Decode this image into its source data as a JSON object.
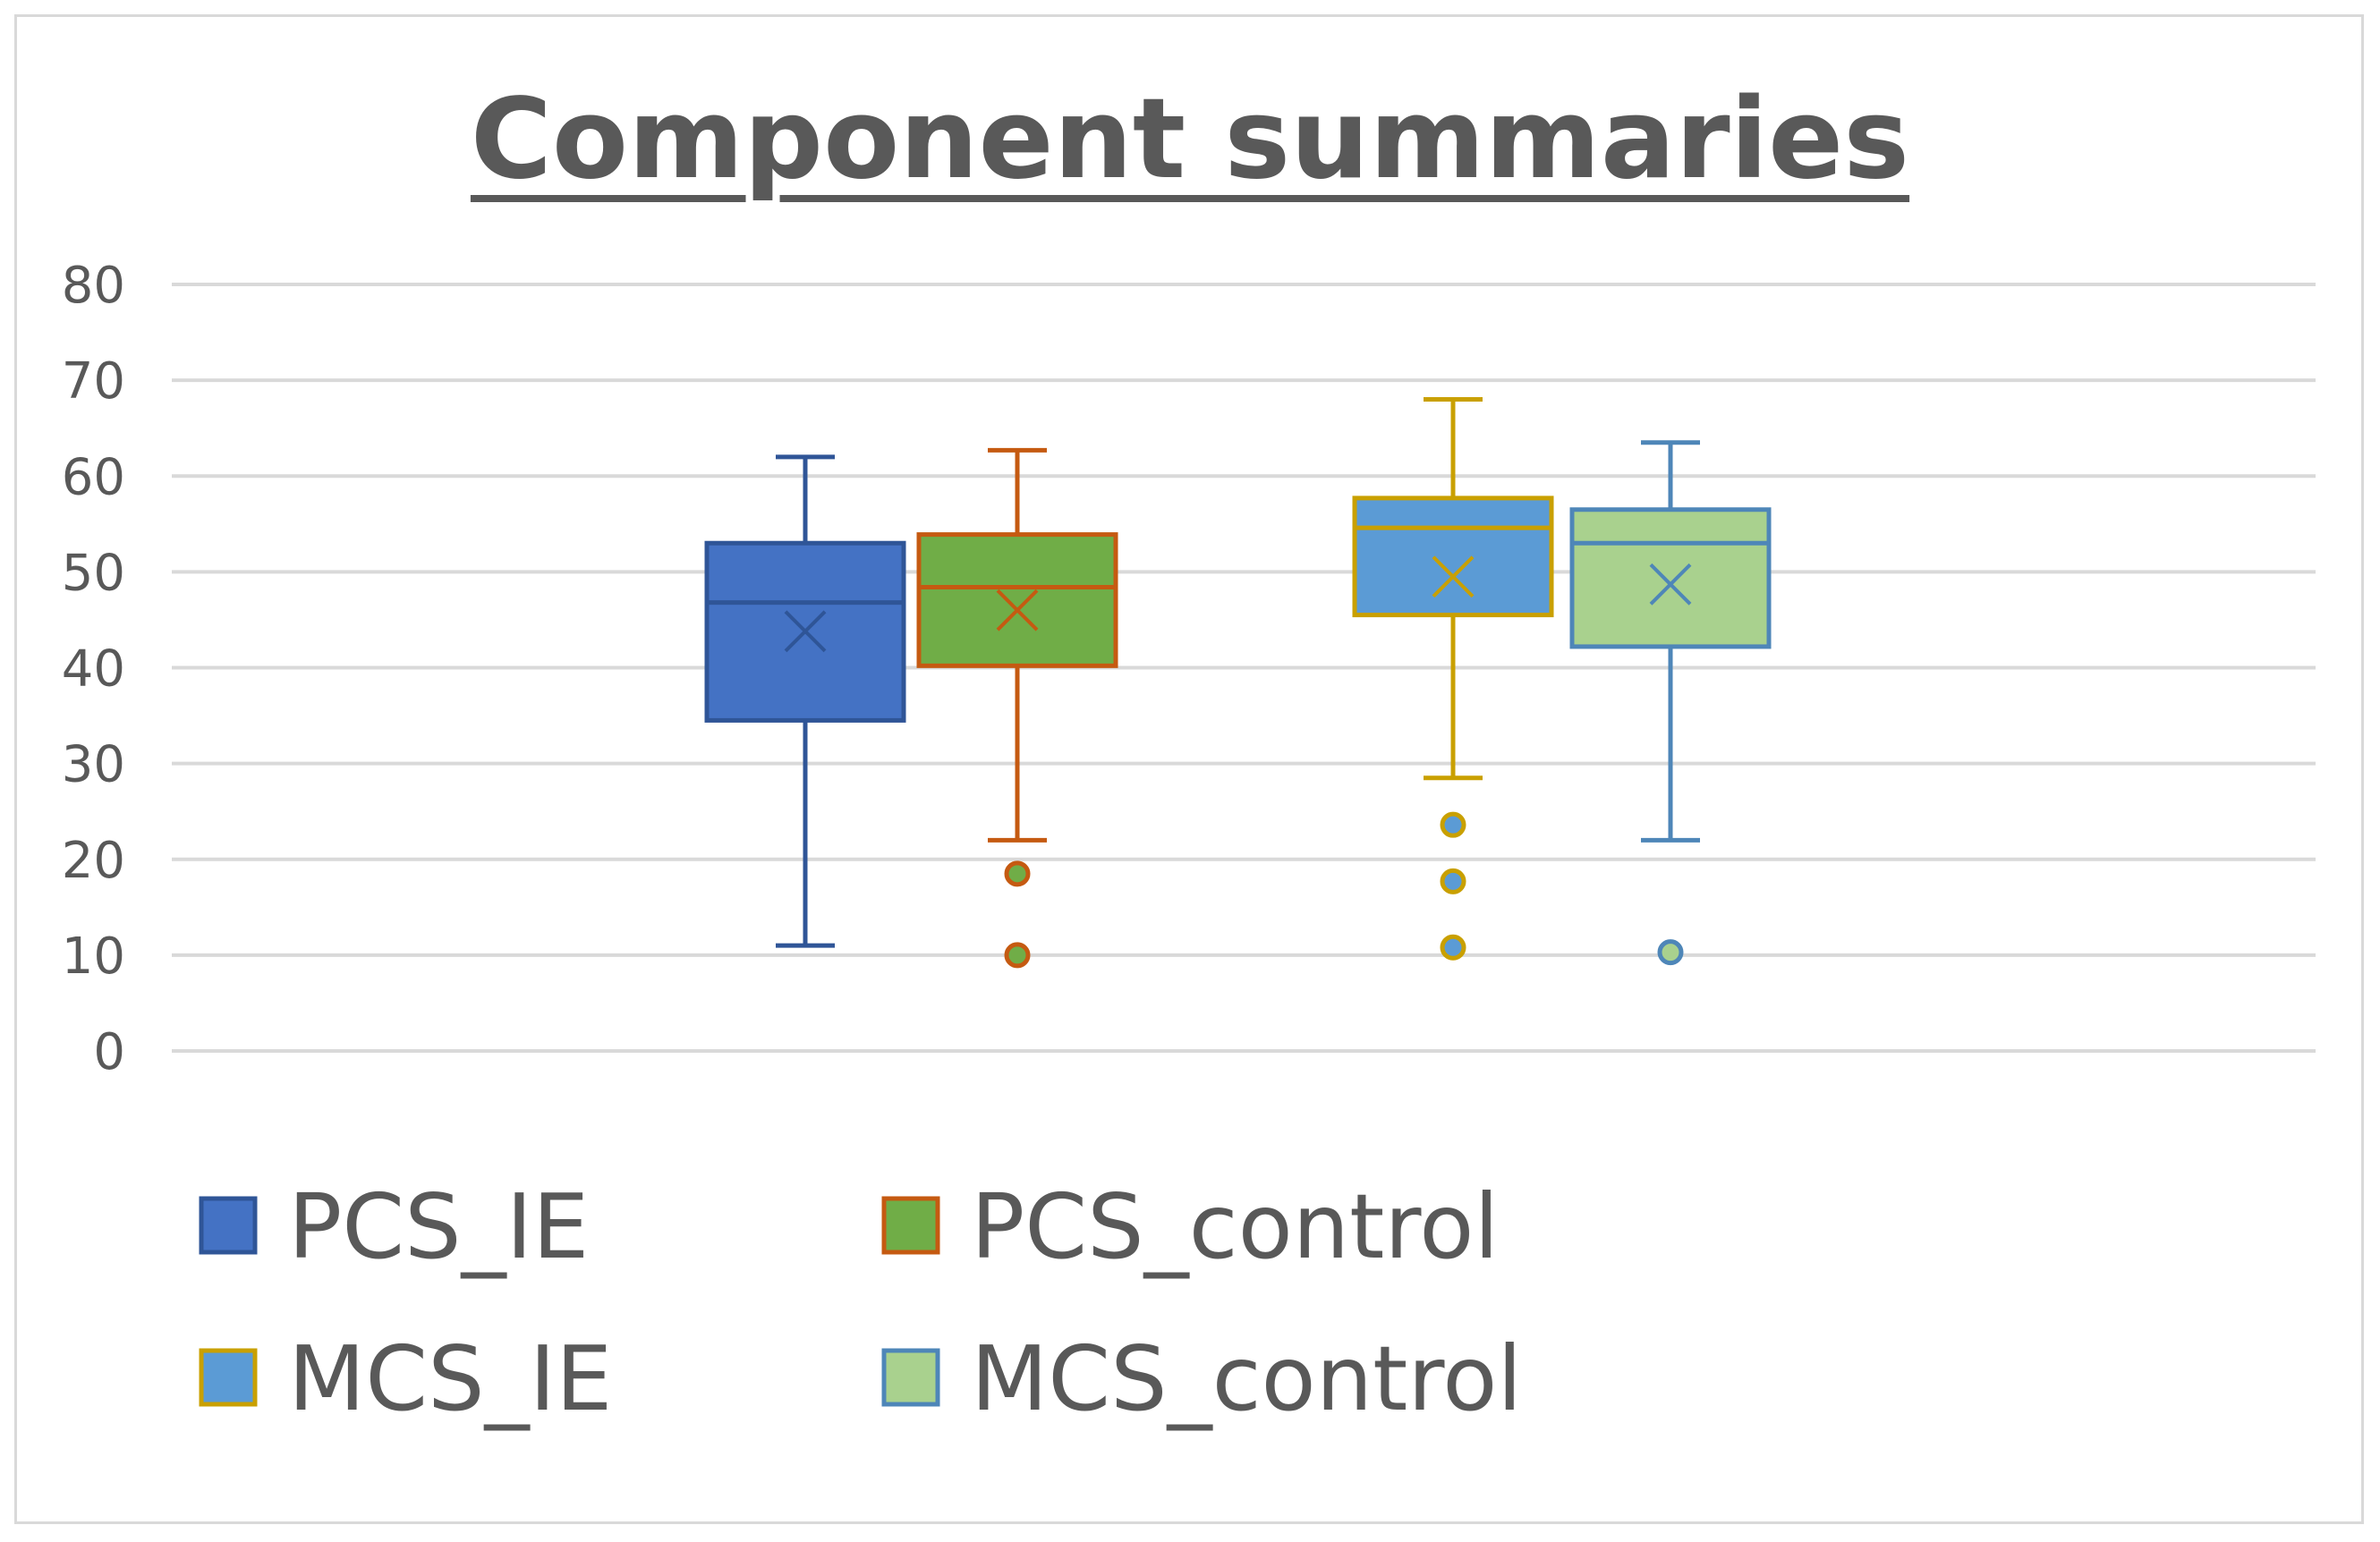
{
  "chart_data": {
    "type": "box",
    "title": "Component summaries",
    "xlabel": "",
    "ylabel": "",
    "ylim": [
      0,
      80
    ],
    "yticks": [
      "0",
      "10",
      "20",
      "30",
      "40",
      "50",
      "60",
      "70",
      "80"
    ],
    "grid": true,
    "legend_position": "bottom",
    "series": [
      {
        "name": "PCS_IE",
        "fill": "#4472c4",
        "stroke": "#2f5597",
        "min": 11,
        "q1": 34.5,
        "median": 46.8,
        "q3": 53,
        "max": 62,
        "mean": 43.8,
        "outliers": []
      },
      {
        "name": "PCS_control",
        "fill": "#70ad47",
        "stroke": "#c55a11",
        "min": 22,
        "q1": 40.2,
        "median": 48.4,
        "q3": 53.9,
        "max": 62.7,
        "mean": 46,
        "outliers": [
          18.5,
          10
        ]
      },
      {
        "name": "MCS_IE",
        "fill": "#5b9bd5",
        "stroke": "#c9a000",
        "min": 28.5,
        "q1": 45.5,
        "median": 54.6,
        "q3": 57.7,
        "max": 68,
        "mean": 49.5,
        "outliers": [
          23.6,
          17.7,
          10.8
        ]
      },
      {
        "name": "MCS_control",
        "fill": "#a9d18e",
        "stroke": "#4e86b8",
        "min": 22,
        "q1": 42.2,
        "median": 53,
        "q3": 56.5,
        "max": 63.5,
        "mean": 48.7,
        "outliers": [
          10.3
        ]
      }
    ]
  }
}
